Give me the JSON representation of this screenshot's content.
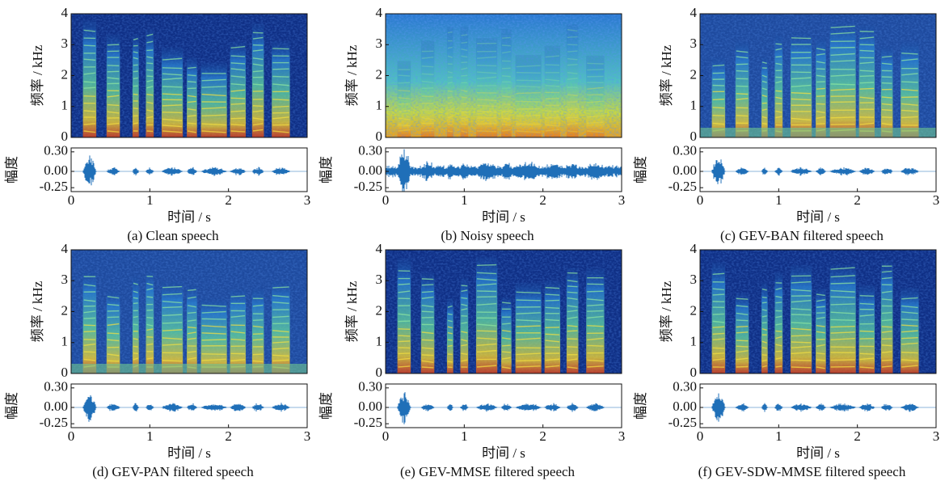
{
  "chart_data": [
    {
      "type": "spectrogram",
      "caption": "(a) Clean speech",
      "ylabel": "频率 / kHz",
      "ylim": [
        0,
        4
      ],
      "yticks": [
        0,
        1,
        2,
        3,
        4
      ],
      "xlabel": "时间 / s",
      "xlim": [
        0,
        3
      ],
      "xticks": [
        0,
        1,
        2,
        3
      ],
      "waveform": {
        "ylabel": "幅度",
        "ylim": [
          -0.31,
          0.36
        ],
        "yticks": [
          {
            "value": 0.3,
            "label": "0.30"
          },
          {
            "value": 0,
            "label": "0.00"
          },
          -0.25
        ],
        "color": "#1f6fb8"
      }
    },
    {
      "type": "spectrogram",
      "caption": "(b) Noisy speech",
      "ylabel": "频率 / kHz",
      "ylim": [
        0,
        4
      ],
      "yticks": [
        0,
        1,
        2,
        3,
        4
      ],
      "xlabel": "时间 / s",
      "xlim": [
        0,
        3
      ],
      "xticks": [
        0,
        1,
        2,
        3
      ],
      "waveform": {
        "ylabel": "幅度",
        "ylim": [
          -0.31,
          0.36
        ],
        "yticks": [
          {
            "value": 0.3,
            "label": "0.30"
          },
          {
            "value": 0,
            "label": "0.00"
          },
          -0.25
        ],
        "color": "#1f6fb8"
      }
    },
    {
      "type": "spectrogram",
      "caption": "(c) GEV-BAN filtered speech",
      "ylabel": "频率 / kHz",
      "ylim": [
        0,
        4
      ],
      "yticks": [
        0,
        1,
        2,
        3,
        4
      ],
      "xlabel": "时间 / s",
      "xlim": [
        0,
        3
      ],
      "xticks": [
        0,
        1,
        2,
        3
      ],
      "waveform": {
        "ylabel": "幅度",
        "ylim": [
          -0.31,
          0.36
        ],
        "yticks": [
          {
            "value": 0.3,
            "label": "0.30"
          },
          {
            "value": 0,
            "label": "0.00"
          },
          -0.25
        ],
        "color": "#1f6fb8"
      }
    },
    {
      "type": "spectrogram",
      "caption": "(d) GEV-PAN filtered speech",
      "ylabel": "频率 / kHz",
      "ylim": [
        0,
        4
      ],
      "yticks": [
        0,
        1,
        2,
        3,
        4
      ],
      "xlabel": "时间 / s",
      "xlim": [
        0,
        3
      ],
      "xticks": [
        0,
        1,
        2,
        3
      ],
      "waveform": {
        "ylabel": "幅度",
        "ylim": [
          -0.31,
          0.36
        ],
        "yticks": [
          {
            "value": 0.3,
            "label": "0.30"
          },
          {
            "value": 0,
            "label": "0.00"
          },
          -0.25
        ],
        "color": "#1f6fb8"
      }
    },
    {
      "type": "spectrogram",
      "caption": "(e) GEV-MMSE filtered speech",
      "ylabel": "频率 / kHz",
      "ylim": [
        0,
        4
      ],
      "yticks": [
        0,
        1,
        2,
        3,
        4
      ],
      "xlabel": "时间 / s",
      "xlim": [
        0,
        3
      ],
      "xticks": [
        0,
        1,
        2,
        3
      ],
      "waveform": {
        "ylabel": "幅度",
        "ylim": [
          -0.31,
          0.36
        ],
        "yticks": [
          {
            "value": 0.3,
            "label": "0.30"
          },
          {
            "value": 0,
            "label": "0.00"
          },
          -0.25
        ],
        "color": "#1f6fb8"
      }
    },
    {
      "type": "spectrogram",
      "caption": "(f) GEV-SDW-MMSE filtered speech",
      "ylabel": "频率 / kHz",
      "ylim": [
        0,
        4
      ],
      "yticks": [
        0,
        1,
        2,
        3,
        4
      ],
      "xlabel": "时间 / s",
      "xlim": [
        0,
        3
      ],
      "xticks": [
        0,
        1,
        2,
        3
      ],
      "waveform": {
        "ylabel": "幅度",
        "ylim": [
          -0.31,
          0.36
        ],
        "yticks": [
          {
            "value": 0.3,
            "label": "0.30"
          },
          {
            "value": 0,
            "label": "0.00"
          },
          -0.25
        ],
        "color": "#1f6fb8"
      }
    }
  ]
}
